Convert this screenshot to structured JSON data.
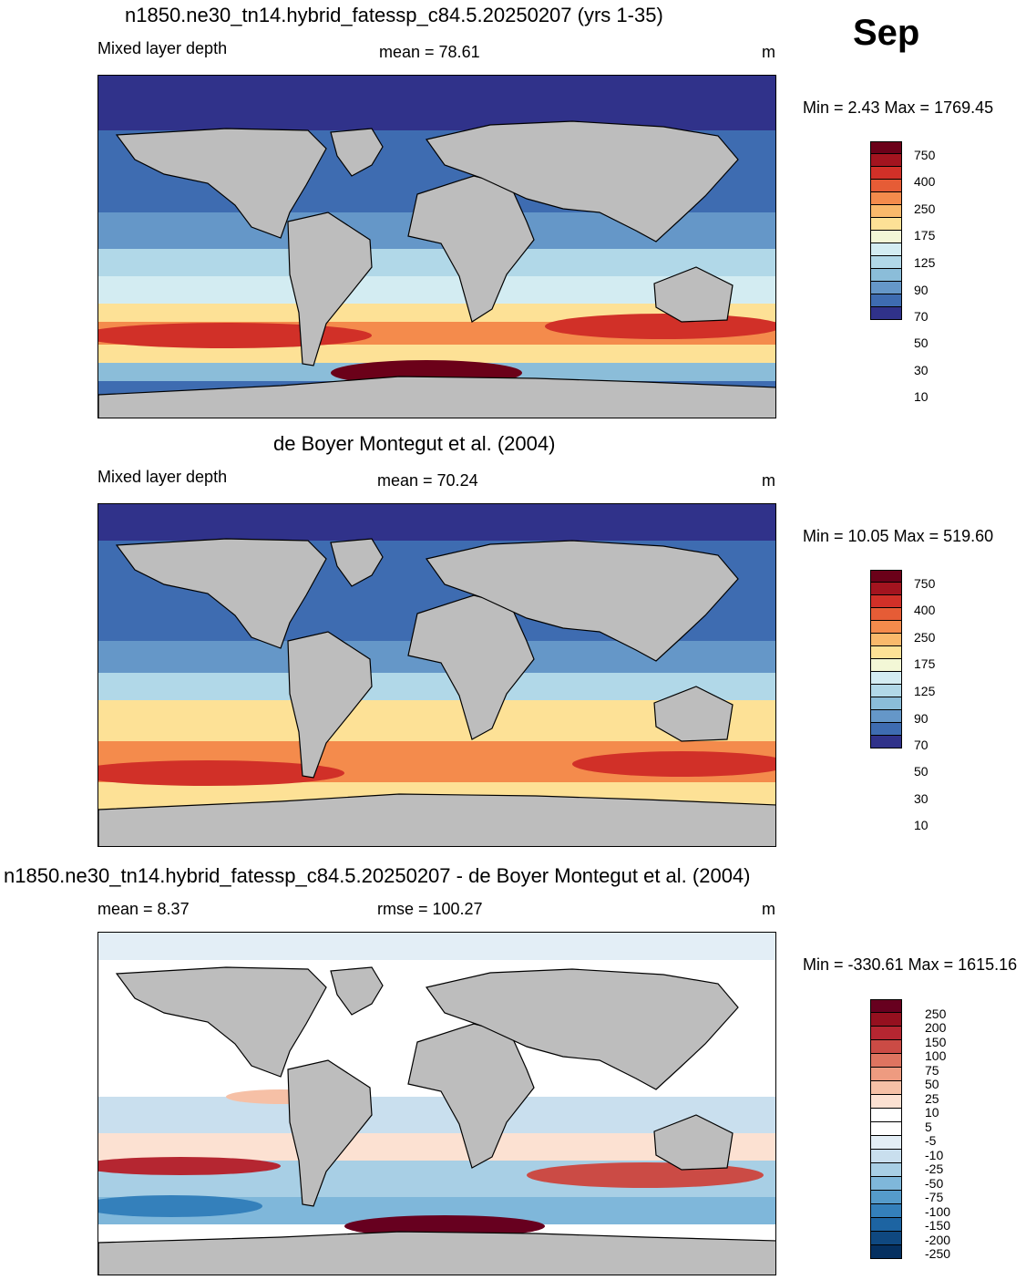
{
  "month": "Sep",
  "panels": [
    {
      "title": "n1850.ne30_tn14.hybrid_fatessp_c84.5.20250207 (yrs 1-35)",
      "left_label": "Mixed layer depth",
      "center_label": "mean =  78.61",
      "units": "m",
      "minmax": "Min =   2.43 Max = 1769.45",
      "colorbar_labels": [
        "750",
        "400",
        "250",
        "175",
        "125",
        "90",
        "70",
        "50",
        "30",
        "10"
      ]
    },
    {
      "title": "de Boyer Montegut et al. (2004)",
      "left_label": "Mixed layer depth",
      "center_label": "mean =  70.24",
      "units": "m",
      "minmax": "Min =  10.05 Max = 519.60",
      "colorbar_labels": [
        "750",
        "400",
        "250",
        "175",
        "125",
        "90",
        "70",
        "50",
        "30",
        "10"
      ]
    },
    {
      "title": "n1850.ne30_tn14.hybrid_fatessp_c84.5.20250207 - de Boyer Montegut et al. (2004)",
      "left_label": "mean =   8.37",
      "center_label": "rmse = 100.27",
      "units": "m",
      "minmax": "Min = -330.61 Max = 1615.16",
      "colorbar_labels": [
        "250",
        "200",
        "150",
        "100",
        "75",
        "50",
        "25",
        "10",
        "5",
        "-5",
        "-10",
        "-25",
        "-50",
        "-75",
        "-100",
        "-150",
        "-200",
        "-250"
      ]
    }
  ],
  "colors": {
    "abs_scale": [
      "#6b0119",
      "#a3141f",
      "#d13028",
      "#e65c36",
      "#f48b4c",
      "#f9b96b",
      "#fde196",
      "#f3f7d6",
      "#d3ecf2",
      "#b1d8e8",
      "#8bbdd9",
      "#6597c8",
      "#3e6cb1",
      "#30328a"
    ],
    "diff_scale": [
      "#67001f",
      "#95101f",
      "#b52631",
      "#cb4b45",
      "#de7460",
      "#ee9b80",
      "#f6c0a6",
      "#fce1d2",
      "#ffffff",
      "#ffffff",
      "#e3eef6",
      "#c9dfee",
      "#a8cfe5",
      "#7fb7da",
      "#559bca",
      "#3480bb",
      "#1d64a2",
      "#0f4880",
      "#053060"
    ],
    "land": "#bdbdbd"
  }
}
